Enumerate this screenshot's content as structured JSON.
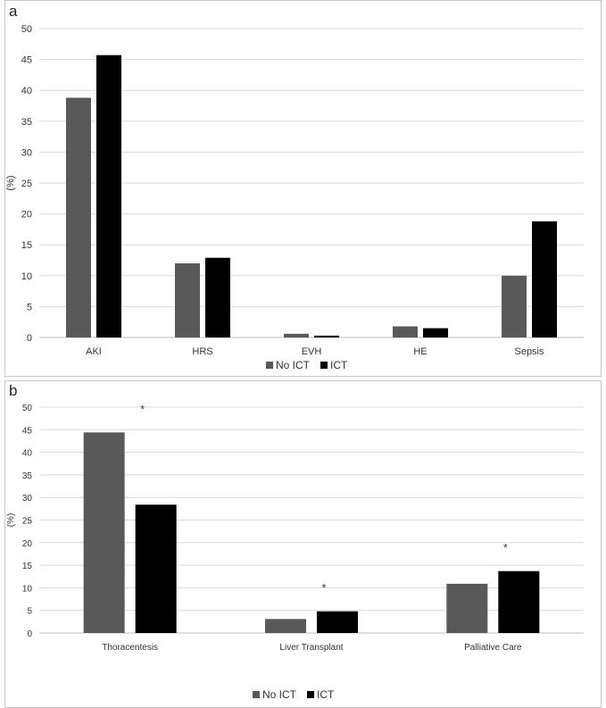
{
  "chart_data": [
    {
      "type": "bar",
      "panel": "a",
      "categories": [
        "AKI",
        "HRS",
        "EVH",
        "HE",
        "Sepsis"
      ],
      "series": [
        {
          "name": "No ICT",
          "values": [
            38.8,
            12.0,
            0.6,
            1.8,
            10.0
          ]
        },
        {
          "name": "ICT",
          "values": [
            45.7,
            12.9,
            0.3,
            1.5,
            18.8
          ]
        }
      ],
      "ylabel": "(%)",
      "ylim": [
        0,
        50
      ],
      "yticks": [
        0,
        5,
        10,
        15,
        20,
        25,
        30,
        35,
        40,
        45,
        50
      ],
      "annotations": [],
      "grid": true,
      "legend": "bottom-center"
    },
    {
      "type": "bar",
      "panel": "b",
      "categories": [
        "Thoracentesis",
        "Liver Transplant",
        "Palliative Care"
      ],
      "series": [
        {
          "name": "No ICT",
          "values": [
            44.4,
            3.1,
            10.9
          ]
        },
        {
          "name": "ICT",
          "values": [
            28.4,
            4.8,
            13.7
          ]
        }
      ],
      "ylabel": "(%)",
      "ylim": [
        0,
        50
      ],
      "yticks": [
        0,
        5,
        10,
        15,
        20,
        25,
        30,
        35,
        40,
        45,
        50
      ],
      "annotations": [
        {
          "text": "*",
          "category": "Thoracentesis"
        },
        {
          "text": "*",
          "category": "Liver Transplant"
        },
        {
          "text": "*",
          "category": "Palliative Care"
        }
      ],
      "grid": true,
      "legend": "bottom-center"
    }
  ],
  "colors": {
    "No ICT": "#595959",
    "ICT": "#000000",
    "grid": "#d9d9d9",
    "axis": "#bfbfbf"
  }
}
